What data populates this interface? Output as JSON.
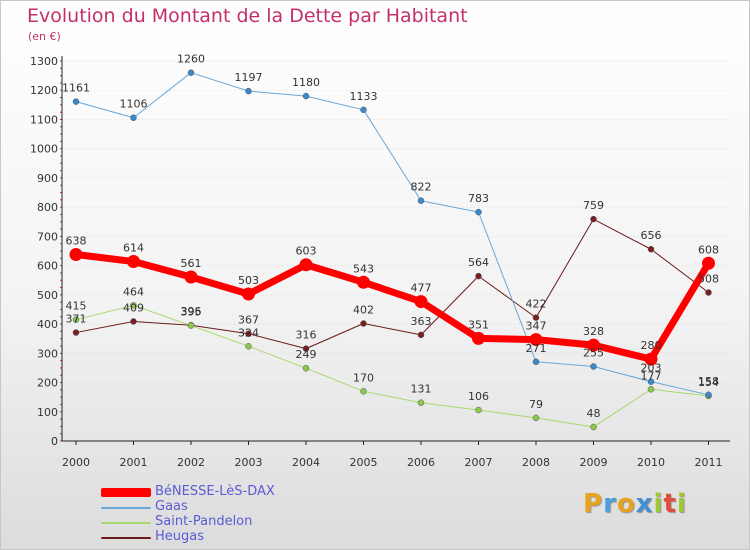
{
  "header": {
    "title": "Evolution du Montant de la Dette par Habitant",
    "unit": "(en €)"
  },
  "brand": {
    "text": "Proxiti",
    "colors": [
      "#e8a31e",
      "#49a0dc",
      "#e8a31e",
      "#3f8fd1",
      "#9fc832",
      "#e24c3a",
      "#9fc832"
    ]
  },
  "chart_data": {
    "type": "line",
    "title": "Evolution du Montant de la Dette par Habitant",
    "ylabel": "(en €)",
    "xlabel": "",
    "x": [
      "2000",
      "2001",
      "2002",
      "2003",
      "2004",
      "2005",
      "2006",
      "2007",
      "2008",
      "2009",
      "2010",
      "2011"
    ],
    "ylim": [
      0,
      1300
    ],
    "yticks": [
      "0",
      "100",
      "200",
      "300",
      "400",
      "500",
      "600",
      "700",
      "800",
      "900",
      "1000",
      "1100",
      "1200",
      "1300"
    ],
    "grid": "dotted horizontal",
    "legend_position": "bottom-left",
    "series": [
      {
        "name": "Heugas",
        "color": "#6b1a1a",
        "width": 1,
        "values": [
          371,
          409,
          396,
          367,
          316,
          402,
          363,
          564,
          422,
          759,
          656,
          508
        ]
      },
      {
        "name": "Saint-Pandelon",
        "color": "#a7d96c",
        "width": 1,
        "values": [
          415,
          464,
          395,
          324,
          249,
          170,
          131,
          106,
          79,
          48,
          177,
          154
        ]
      },
      {
        "name": "Gaas",
        "color": "#6aa7d9",
        "width": 1,
        "values": [
          1161,
          1106,
          1260,
          1197,
          1180,
          1133,
          822,
          783,
          271,
          255,
          203,
          158
        ]
      },
      {
        "name": "BéNESSE-LèS-DAX",
        "color": "#ff0000",
        "width": 7,
        "values": [
          638,
          614,
          561,
          503,
          603,
          543,
          477,
          351,
          347,
          328,
          280,
          608
        ]
      }
    ],
    "legend": [
      {
        "label": "BéNESSE-LèS-DAX",
        "color": "#ff0000",
        "thick": true
      },
      {
        "label": "Gaas",
        "color": "#6aa7d9",
        "thick": false
      },
      {
        "label": "Saint-Pandelon",
        "color": "#a7d96c",
        "thick": false
      },
      {
        "label": "Heugas",
        "color": "#6b1a1a",
        "thick": false
      }
    ]
  }
}
